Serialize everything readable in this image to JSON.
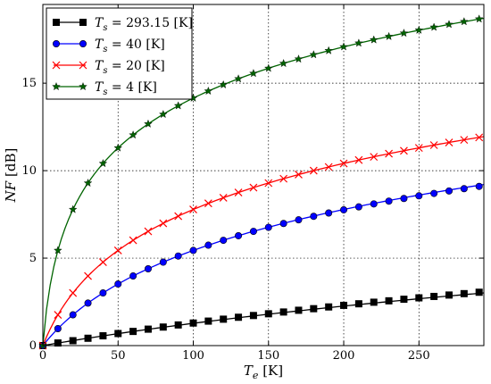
{
  "chart_data": {
    "type": "line",
    "xlabel": "T_e [K]",
    "xlabel_main": "T",
    "xlabel_sub": "e",
    "xlabel_unit": " [K]",
    "ylabel": "NF [dB]",
    "ylabel_main": "NF",
    "ylabel_unit": " [dB]",
    "xlim": [
      0,
      293.15
    ],
    "ylim": [
      0,
      19.5
    ],
    "xticks": [
      0,
      50,
      100,
      150,
      200,
      250
    ],
    "yticks": [
      0,
      5,
      10,
      15
    ],
    "grid": true,
    "legend_position": "top-left",
    "x_markers": [
      0,
      10,
      20,
      30,
      40,
      50,
      60,
      70,
      80,
      90,
      100,
      110,
      120,
      130,
      140,
      150,
      160,
      170,
      180,
      190,
      200,
      210,
      220,
      230,
      240,
      250,
      260,
      270,
      280,
      290
    ],
    "series": [
      {
        "name": "T_s = 293.15 [K]",
        "legend_main": "T",
        "legend_sub": "s",
        "legend_value": " = 293.15 [K]",
        "color": "#000000",
        "marker": "square",
        "Ts": 293.15,
        "values": [
          0.0,
          0.15,
          0.28,
          0.42,
          0.56,
          0.69,
          0.81,
          0.94,
          1.06,
          1.18,
          1.29,
          1.4,
          1.51,
          1.62,
          1.72,
          1.82,
          1.92,
          2.02,
          2.11,
          2.21,
          2.3,
          2.39,
          2.48,
          2.56,
          2.65,
          2.73,
          2.81,
          2.89,
          2.97,
          3.05
        ]
      },
      {
        "name": "T_s = 40 [K]",
        "legend_main": "T",
        "legend_sub": "s",
        "legend_value": " = 40 [K]",
        "color": "#0000ff",
        "marker": "circle",
        "Ts": 40,
        "values": [
          0.0,
          0.97,
          1.76,
          2.43,
          3.01,
          3.52,
          3.98,
          4.39,
          4.77,
          5.12,
          5.44,
          5.74,
          6.02,
          6.28,
          6.53,
          6.76,
          6.98,
          7.19,
          7.39,
          7.58,
          7.76,
          7.93,
          8.1,
          8.26,
          8.41,
          8.56,
          8.7,
          8.84,
          8.97,
          9.1
        ]
      },
      {
        "name": "T_s = 20 [K]",
        "legend_main": "T",
        "legend_sub": "s",
        "legend_value": " = 20 [K]",
        "color": "#ff0000",
        "marker": "x",
        "Ts": 20,
        "values": [
          0.0,
          1.76,
          3.01,
          3.98,
          4.77,
          5.44,
          6.02,
          6.53,
          6.99,
          7.4,
          7.78,
          8.13,
          8.45,
          8.75,
          9.03,
          9.29,
          9.54,
          9.78,
          10.0,
          10.21,
          10.41,
          10.61,
          10.79,
          10.97,
          11.14,
          11.3,
          11.46,
          11.61,
          11.76,
          11.9
        ]
      },
      {
        "name": "T_s = 4 [K]",
        "legend_main": "T",
        "legend_sub": "s",
        "legend_value": " = 4 [K]",
        "color": "#006400",
        "marker": "star",
        "Ts": 4,
        "values": [
          0.0,
          5.44,
          7.78,
          9.29,
          10.41,
          11.3,
          12.04,
          12.67,
          13.22,
          13.71,
          14.15,
          14.55,
          14.91,
          15.25,
          15.56,
          15.85,
          16.13,
          16.38,
          16.63,
          16.86,
          17.08,
          17.29,
          17.48,
          17.67,
          17.86,
          18.03,
          18.2,
          18.36,
          18.52,
          18.67
        ]
      }
    ]
  }
}
